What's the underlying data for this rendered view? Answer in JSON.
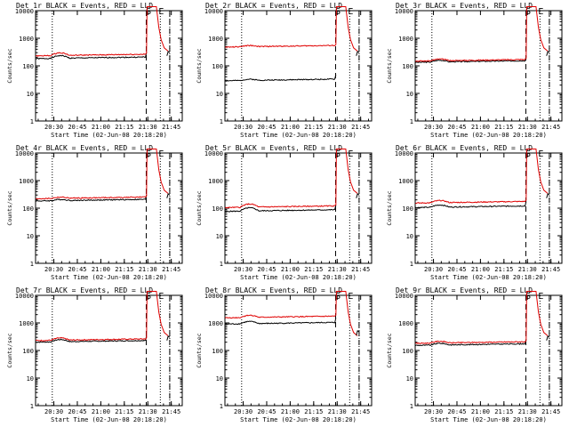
{
  "shared": {
    "x_ticks": [
      "20:30",
      "20:45",
      "21:00",
      "21:15",
      "21:30",
      "21:45"
    ],
    "x_tick_minutes": [
      30,
      45,
      60,
      75,
      90,
      105
    ],
    "xlim_minutes": [
      18.33,
      112
    ],
    "y_ticks": [
      "1",
      "10",
      "100",
      "1000",
      "10000"
    ],
    "y_tick_values": [
      1,
      10,
      100,
      1000,
      10000
    ],
    "ylim": [
      1,
      10000
    ],
    "ylabel": "Counts/sec",
    "xlabel": "Start Time (02-Jun-08 20:18:20)",
    "vlines_dotted_minutes": [
      29,
      98,
      104
    ],
    "vlines_dashed_minutes": [
      89,
      104
    ],
    "markers": [
      {
        "text": "S",
        "minute": 90.5
      },
      {
        "text": "E",
        "minute": 98.6
      }
    ]
  },
  "colors": {
    "events": "#000000",
    "lld": "#e00000",
    "axis": "#000000"
  },
  "chart_data": [
    {
      "type": "line",
      "title": "Det 1r BLACK = Events, RED = LLD",
      "events_level": 190,
      "lld_level": 240,
      "bump": 1.25
    },
    {
      "type": "line",
      "title": "Det 2r BLACK = Events, RED = LLD",
      "events_level": 30,
      "lld_level": 500,
      "bump": 1.1
    },
    {
      "type": "line",
      "title": "Det 3r BLACK = Events, RED = LLD",
      "events_level": 140,
      "lld_level": 155,
      "bump": 1.15
    },
    {
      "type": "line",
      "title": "Det 4r BLACK = Events, RED = LLD",
      "events_level": 190,
      "lld_level": 230,
      "bump": 1.1
    },
    {
      "type": "line",
      "title": "Det 5r BLACK = Events, RED = LLD",
      "events_level": 80,
      "lld_level": 110,
      "bump": 1.3
    },
    {
      "type": "line",
      "title": "Det 6r BLACK = Events, RED = LLD",
      "events_level": 110,
      "lld_level": 160,
      "bump": 1.2
    },
    {
      "type": "line",
      "title": "Det 7r BLACK = Events, RED = LLD",
      "events_level": 210,
      "lld_level": 240,
      "bump": 1.2
    },
    {
      "type": "line",
      "title": "Det 8r BLACK = Events, RED = LLD",
      "events_level": 950,
      "lld_level": 1600,
      "bump": 1.2
    },
    {
      "type": "line",
      "title": "Det 9r BLACK = Events, RED = LLD",
      "events_level": 160,
      "lld_level": 190,
      "bump": 1.15
    }
  ]
}
